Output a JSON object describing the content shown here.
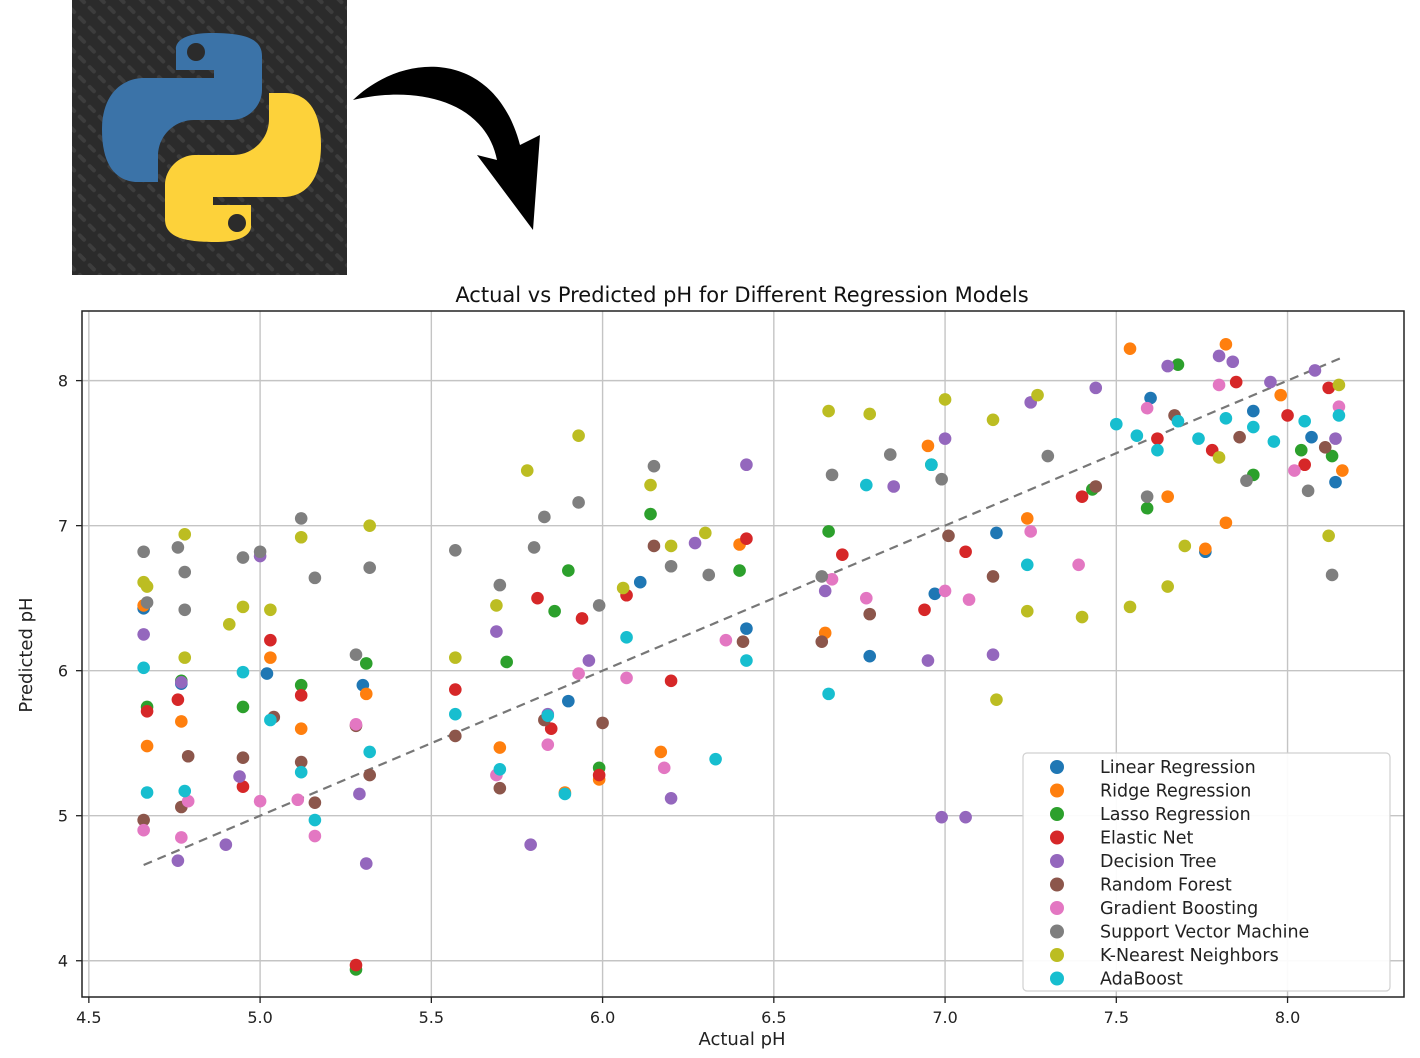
{
  "header": {
    "logo_icon": "python-logo-icon",
    "arrow_icon": "curved-arrow-down-icon"
  },
  "chart_data": {
    "type": "scatter",
    "title": "Actual vs Predicted pH for Different Regression Models",
    "xlabel": "Actual pH",
    "ylabel": "Predicted pH",
    "xlim": [
      4.48,
      8.34
    ],
    "ylim": [
      3.75,
      8.48
    ],
    "xticks": [
      4.5,
      5.0,
      5.5,
      6.0,
      6.5,
      7.0,
      7.5,
      8.0
    ],
    "xtick_labels": [
      "4.5",
      "5.0",
      "5.5",
      "6.0",
      "6.5",
      "7.0",
      "7.5",
      "8.0"
    ],
    "yticks": [
      4,
      5,
      6,
      7,
      8
    ],
    "ytick_labels": [
      "4",
      "5",
      "6",
      "7",
      "8"
    ],
    "grid": true,
    "legend_position": "lower-right",
    "reference_line": {
      "style": "dashed",
      "color": "#777777",
      "x": [
        4.66,
        8.16
      ],
      "y": [
        4.66,
        8.16
      ]
    },
    "series": [
      {
        "name": "Linear Regression",
        "color": "#1f77b4",
        "points": [
          [
            4.66,
            6.43
          ],
          [
            4.77,
            5.91
          ],
          [
            5.02,
            5.98
          ],
          [
            5.3,
            5.9
          ],
          [
            5.9,
            5.79
          ],
          [
            6.11,
            6.61
          ],
          [
            6.42,
            6.29
          ],
          [
            6.78,
            6.1
          ],
          [
            6.97,
            6.53
          ],
          [
            7.15,
            6.95
          ],
          [
            7.6,
            7.88
          ],
          [
            7.76,
            6.82
          ],
          [
            7.9,
            7.79
          ],
          [
            8.07,
            7.61
          ],
          [
            8.14,
            7.3
          ]
        ]
      },
      {
        "name": "Ridge Regression",
        "color": "#ff7f0e",
        "points": [
          [
            4.66,
            6.45
          ],
          [
            4.67,
            5.48
          ],
          [
            4.77,
            5.65
          ],
          [
            5.03,
            6.09
          ],
          [
            5.12,
            5.6
          ],
          [
            5.31,
            5.84
          ],
          [
            5.7,
            5.47
          ],
          [
            5.89,
            5.16
          ],
          [
            5.99,
            5.25
          ],
          [
            6.17,
            5.44
          ],
          [
            6.4,
            6.87
          ],
          [
            6.65,
            6.26
          ],
          [
            6.95,
            7.55
          ],
          [
            7.24,
            7.05
          ],
          [
            7.54,
            8.22
          ],
          [
            7.65,
            7.2
          ],
          [
            7.76,
            6.84
          ],
          [
            7.82,
            8.25
          ],
          [
            7.82,
            7.02
          ],
          [
            7.98,
            7.9
          ],
          [
            8.16,
            7.38
          ]
        ]
      },
      {
        "name": "Lasso Regression",
        "color": "#2ca02c",
        "points": [
          [
            4.67,
            5.75
          ],
          [
            4.77,
            5.93
          ],
          [
            4.95,
            5.75
          ],
          [
            5.12,
            5.9
          ],
          [
            5.28,
            3.94
          ],
          [
            5.31,
            6.05
          ],
          [
            5.72,
            6.06
          ],
          [
            5.86,
            6.41
          ],
          [
            5.9,
            6.69
          ],
          [
            5.99,
            5.33
          ],
          [
            6.14,
            7.08
          ],
          [
            6.4,
            6.69
          ],
          [
            6.66,
            6.96
          ],
          [
            6.96,
            7.42
          ],
          [
            7.43,
            7.25
          ],
          [
            7.59,
            7.12
          ],
          [
            7.68,
            8.11
          ],
          [
            7.9,
            7.35
          ],
          [
            8.04,
            7.52
          ],
          [
            8.13,
            7.48
          ]
        ]
      },
      {
        "name": "Elastic Net",
        "color": "#d62728",
        "points": [
          [
            4.67,
            5.72
          ],
          [
            4.76,
            5.8
          ],
          [
            4.95,
            5.2
          ],
          [
            5.03,
            6.21
          ],
          [
            5.12,
            5.83
          ],
          [
            5.28,
            3.97
          ],
          [
            5.57,
            5.87
          ],
          [
            5.81,
            6.5
          ],
          [
            5.85,
            5.6
          ],
          [
            5.94,
            6.36
          ],
          [
            5.99,
            5.28
          ],
          [
            6.07,
            6.52
          ],
          [
            6.2,
            5.93
          ],
          [
            6.42,
            6.91
          ],
          [
            6.7,
            6.8
          ],
          [
            6.94,
            6.42
          ],
          [
            7.06,
            6.82
          ],
          [
            7.4,
            7.2
          ],
          [
            7.62,
            7.6
          ],
          [
            7.78,
            7.52
          ],
          [
            7.85,
            7.99
          ],
          [
            8.0,
            7.76
          ],
          [
            8.05,
            7.42
          ],
          [
            8.12,
            7.95
          ]
        ]
      },
      {
        "name": "Decision Tree",
        "color": "#9467bd",
        "points": [
          [
            4.66,
            6.25
          ],
          [
            4.76,
            4.69
          ],
          [
            4.77,
            5.92
          ],
          [
            4.9,
            4.8
          ],
          [
            4.94,
            5.27
          ],
          [
            5.0,
            6.79
          ],
          [
            5.29,
            5.15
          ],
          [
            5.31,
            4.67
          ],
          [
            5.69,
            6.27
          ],
          [
            5.79,
            4.8
          ],
          [
            5.84,
            5.7
          ],
          [
            5.96,
            6.07
          ],
          [
            6.2,
            5.12
          ],
          [
            6.27,
            6.88
          ],
          [
            6.42,
            7.42
          ],
          [
            6.65,
            6.55
          ],
          [
            6.85,
            7.27
          ],
          [
            6.95,
            6.07
          ],
          [
            7.0,
            7.6
          ],
          [
            6.99,
            4.99
          ],
          [
            7.06,
            4.99
          ],
          [
            7.14,
            6.11
          ],
          [
            7.25,
            7.85
          ],
          [
            7.44,
            7.95
          ],
          [
            7.65,
            8.1
          ],
          [
            7.8,
            8.17
          ],
          [
            7.84,
            8.13
          ],
          [
            7.95,
            7.99
          ],
          [
            8.08,
            8.07
          ],
          [
            8.14,
            7.6
          ]
        ]
      },
      {
        "name": "Random Forest",
        "color": "#8c564b",
        "points": [
          [
            4.66,
            4.97
          ],
          [
            4.77,
            5.06
          ],
          [
            4.79,
            5.41
          ],
          [
            4.95,
            5.4
          ],
          [
            5.04,
            5.68
          ],
          [
            5.12,
            5.37
          ],
          [
            5.16,
            5.09
          ],
          [
            5.28,
            5.62
          ],
          [
            5.32,
            5.28
          ],
          [
            5.57,
            5.55
          ],
          [
            5.7,
            5.19
          ],
          [
            5.83,
            5.66
          ],
          [
            6.0,
            5.64
          ],
          [
            6.15,
            6.86
          ],
          [
            6.41,
            6.2
          ],
          [
            6.64,
            6.2
          ],
          [
            6.78,
            6.39
          ],
          [
            7.01,
            6.93
          ],
          [
            7.14,
            6.65
          ],
          [
            7.44,
            7.27
          ],
          [
            7.67,
            7.76
          ],
          [
            7.86,
            7.61
          ],
          [
            8.11,
            7.54
          ]
        ]
      },
      {
        "name": "Gradient Boosting",
        "color": "#e377c2",
        "points": [
          [
            4.66,
            4.9
          ],
          [
            4.77,
            4.85
          ],
          [
            4.79,
            5.1
          ],
          [
            5.0,
            5.1
          ],
          [
            5.11,
            5.11
          ],
          [
            5.16,
            4.86
          ],
          [
            5.28,
            5.63
          ],
          [
            5.69,
            5.28
          ],
          [
            5.84,
            5.49
          ],
          [
            5.93,
            5.98
          ],
          [
            6.07,
            5.95
          ],
          [
            6.18,
            5.33
          ],
          [
            6.36,
            6.21
          ],
          [
            6.67,
            6.63
          ],
          [
            6.77,
            6.5
          ],
          [
            7.0,
            6.55
          ],
          [
            7.07,
            6.49
          ],
          [
            7.25,
            6.96
          ],
          [
            7.39,
            6.73
          ],
          [
            7.59,
            7.81
          ],
          [
            7.8,
            7.97
          ],
          [
            8.02,
            7.38
          ],
          [
            8.15,
            7.82
          ]
        ]
      },
      {
        "name": "Support Vector Machine",
        "color": "#7f7f7f",
        "points": [
          [
            4.66,
            6.82
          ],
          [
            4.67,
            6.47
          ],
          [
            4.76,
            6.85
          ],
          [
            4.78,
            6.42
          ],
          [
            4.78,
            6.68
          ],
          [
            4.95,
            6.78
          ],
          [
            5.0,
            6.82
          ],
          [
            5.12,
            7.05
          ],
          [
            5.16,
            6.64
          ],
          [
            5.28,
            6.11
          ],
          [
            5.32,
            6.71
          ],
          [
            5.57,
            6.83
          ],
          [
            5.7,
            6.59
          ],
          [
            5.8,
            6.85
          ],
          [
            5.83,
            7.06
          ],
          [
            5.93,
            7.16
          ],
          [
            5.99,
            6.45
          ],
          [
            6.15,
            7.41
          ],
          [
            6.2,
            6.72
          ],
          [
            6.31,
            6.66
          ],
          [
            6.64,
            6.65
          ],
          [
            6.67,
            7.35
          ],
          [
            6.84,
            7.49
          ],
          [
            6.99,
            7.32
          ],
          [
            7.3,
            7.48
          ],
          [
            7.59,
            7.2
          ],
          [
            7.88,
            7.31
          ],
          [
            8.06,
            7.24
          ],
          [
            8.13,
            6.66
          ]
        ]
      },
      {
        "name": "K-Nearest Neighbors",
        "color": "#bcbd22",
        "points": [
          [
            4.66,
            6.61
          ],
          [
            4.67,
            6.58
          ],
          [
            4.78,
            6.94
          ],
          [
            4.78,
            6.09
          ],
          [
            4.91,
            6.32
          ],
          [
            4.95,
            6.44
          ],
          [
            5.03,
            6.42
          ],
          [
            5.12,
            6.92
          ],
          [
            5.32,
            7.0
          ],
          [
            5.57,
            6.09
          ],
          [
            5.69,
            6.45
          ],
          [
            5.78,
            7.38
          ],
          [
            5.93,
            7.62
          ],
          [
            6.06,
            6.57
          ],
          [
            6.14,
            7.28
          ],
          [
            6.2,
            6.86
          ],
          [
            6.3,
            6.95
          ],
          [
            6.66,
            7.79
          ],
          [
            6.78,
            7.77
          ],
          [
            7.0,
            7.87
          ],
          [
            7.14,
            7.73
          ],
          [
            7.15,
            5.8
          ],
          [
            7.24,
            6.41
          ],
          [
            7.27,
            7.9
          ],
          [
            7.4,
            6.37
          ],
          [
            7.54,
            6.44
          ],
          [
            7.65,
            6.58
          ],
          [
            7.7,
            6.86
          ],
          [
            7.8,
            7.47
          ],
          [
            8.12,
            6.93
          ],
          [
            8.15,
            7.97
          ]
        ]
      },
      {
        "name": "AdaBoost",
        "color": "#17becf",
        "points": [
          [
            4.66,
            6.02
          ],
          [
            4.67,
            5.16
          ],
          [
            4.78,
            5.17
          ],
          [
            4.95,
            5.99
          ],
          [
            5.03,
            5.66
          ],
          [
            5.12,
            5.3
          ],
          [
            5.16,
            4.97
          ],
          [
            5.32,
            5.44
          ],
          [
            5.57,
            5.7
          ],
          [
            5.7,
            5.32
          ],
          [
            5.84,
            5.69
          ],
          [
            5.89,
            5.15
          ],
          [
            6.07,
            6.23
          ],
          [
            6.33,
            5.39
          ],
          [
            6.42,
            6.07
          ],
          [
            6.66,
            5.84
          ],
          [
            6.77,
            7.28
          ],
          [
            6.96,
            7.42
          ],
          [
            7.24,
            6.73
          ],
          [
            7.5,
            7.7
          ],
          [
            7.56,
            7.62
          ],
          [
            7.62,
            7.52
          ],
          [
            7.68,
            7.72
          ],
          [
            7.74,
            7.6
          ],
          [
            7.82,
            7.74
          ],
          [
            7.9,
            7.68
          ],
          [
            7.96,
            7.58
          ],
          [
            8.05,
            7.72
          ],
          [
            8.15,
            7.76
          ]
        ]
      }
    ]
  }
}
